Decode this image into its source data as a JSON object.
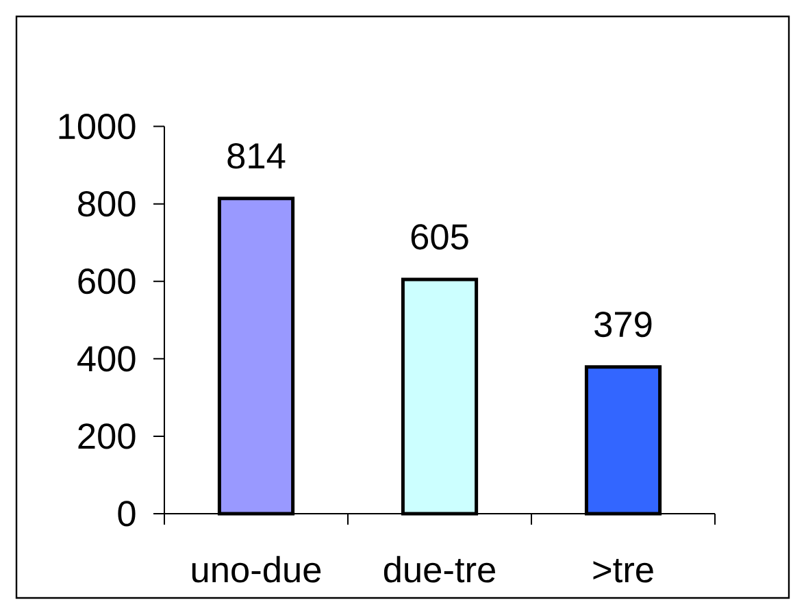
{
  "chart_data": {
    "type": "bar",
    "categories": [
      "uno-due",
      "due-tre",
      ">tre"
    ],
    "values": [
      814,
      605,
      379
    ],
    "colors": [
      "#9999ff",
      "#ccffff",
      "#3366ff"
    ],
    "ylim": [
      0,
      1000
    ],
    "yticks": [
      0,
      200,
      400,
      600,
      800,
      1000
    ],
    "data_labels": true
  }
}
